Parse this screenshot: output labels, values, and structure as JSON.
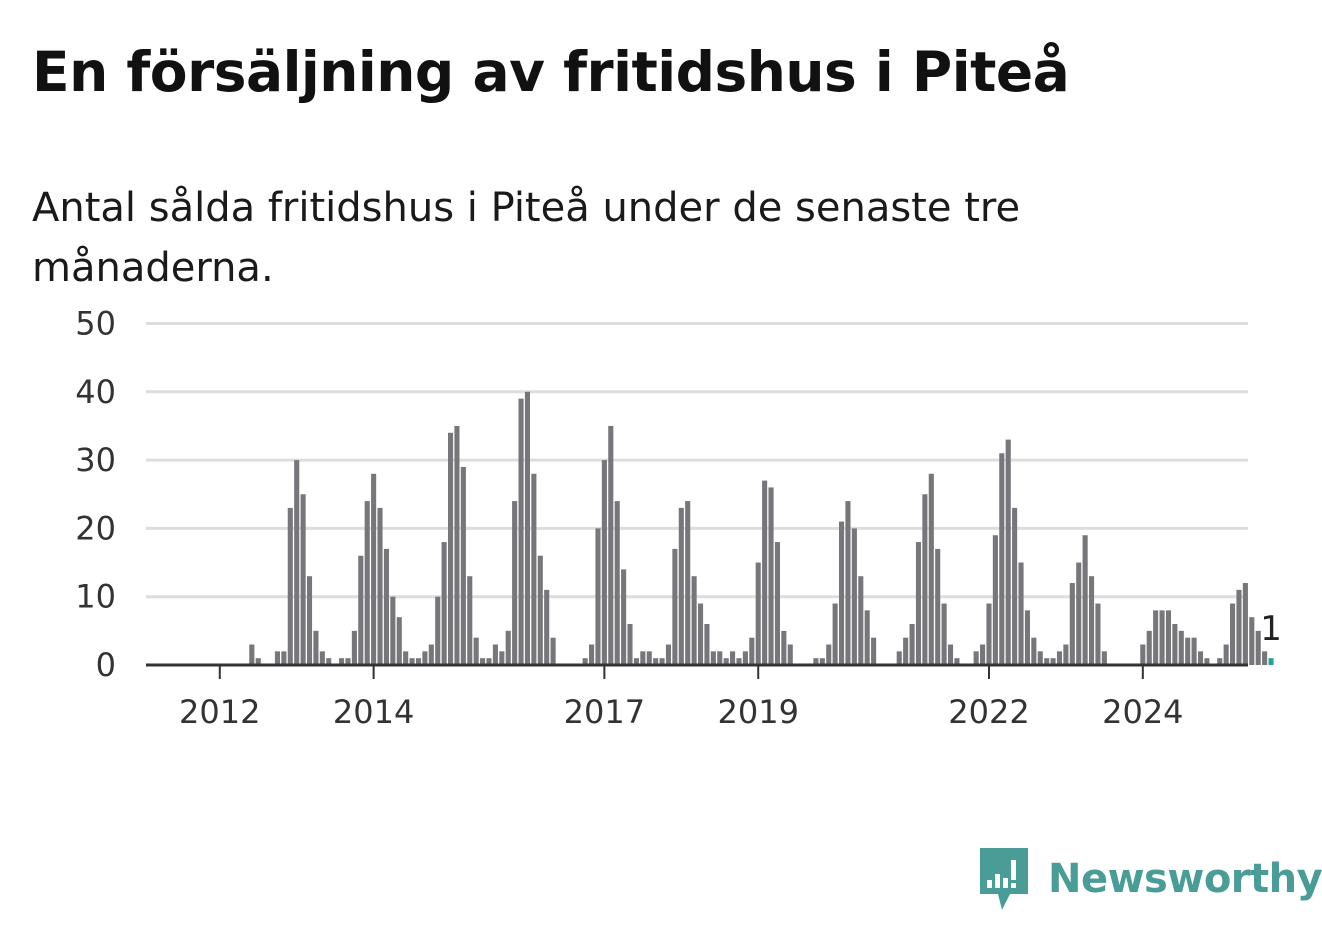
{
  "title": "En försäljning av fritidshus i Piteå",
  "subtitle": "Antal sålda fritidshus i Piteå under de senaste tre månaderna.",
  "brand": {
    "name": "Newsworthy",
    "color": "#4a9d97",
    "icon": "newsworthy-logo-icon"
  },
  "colors": {
    "bar": "#77767a",
    "highlight": "#2aa198",
    "grid": "#dddddd",
    "axis": "#333333"
  },
  "chart_data": {
    "type": "bar",
    "title": "En försäljning av fritidshus i Piteå",
    "subtitle": "Antal sålda fritidshus i Piteå under de senaste tre månaderna.",
    "xlabel": "",
    "ylabel": "",
    "ylim": [
      0,
      50
    ],
    "yticks": [
      "0",
      "10",
      "20",
      "30",
      "40",
      "50"
    ],
    "grid": true,
    "start": "2011-10",
    "frequency": "monthly",
    "xtick_labels": [
      "2012",
      "2014",
      "2017",
      "2019",
      "2022",
      "2024"
    ],
    "values": [
      0,
      0,
      0,
      0,
      0,
      0,
      0,
      0,
      3,
      1,
      0,
      0,
      2,
      2,
      23,
      30,
      25,
      13,
      5,
      2,
      1,
      0,
      1,
      1,
      5,
      16,
      24,
      28,
      23,
      17,
      10,
      7,
      2,
      1,
      1,
      2,
      3,
      10,
      18,
      34,
      35,
      29,
      13,
      4,
      1,
      1,
      3,
      2,
      5,
      24,
      39,
      40,
      28,
      16,
      11,
      4,
      0,
      0,
      0,
      0,
      1,
      3,
      20,
      30,
      35,
      24,
      14,
      6,
      1,
      2,
      2,
      1,
      1,
      3,
      17,
      23,
      24,
      13,
      9,
      6,
      2,
      2,
      1,
      2,
      1,
      2,
      4,
      15,
      27,
      26,
      18,
      5,
      3,
      0,
      0,
      0,
      1,
      1,
      3,
      9,
      21,
      24,
      20,
      13,
      8,
      4,
      0,
      0,
      0,
      2,
      4,
      6,
      18,
      25,
      28,
      17,
      9,
      3,
      1,
      0,
      0,
      2,
      3,
      9,
      19,
      31,
      33,
      23,
      15,
      8,
      4,
      2,
      1,
      1,
      2,
      3,
      12,
      15,
      19,
      13,
      9,
      2,
      0,
      0,
      0,
      0,
      0,
      3,
      5,
      8,
      8,
      8,
      6,
      5,
      4,
      4,
      2,
      1,
      0,
      1,
      3,
      9,
      11,
      12,
      7,
      5,
      2,
      1
    ],
    "highlight_last": true,
    "last_value_label": "1"
  }
}
